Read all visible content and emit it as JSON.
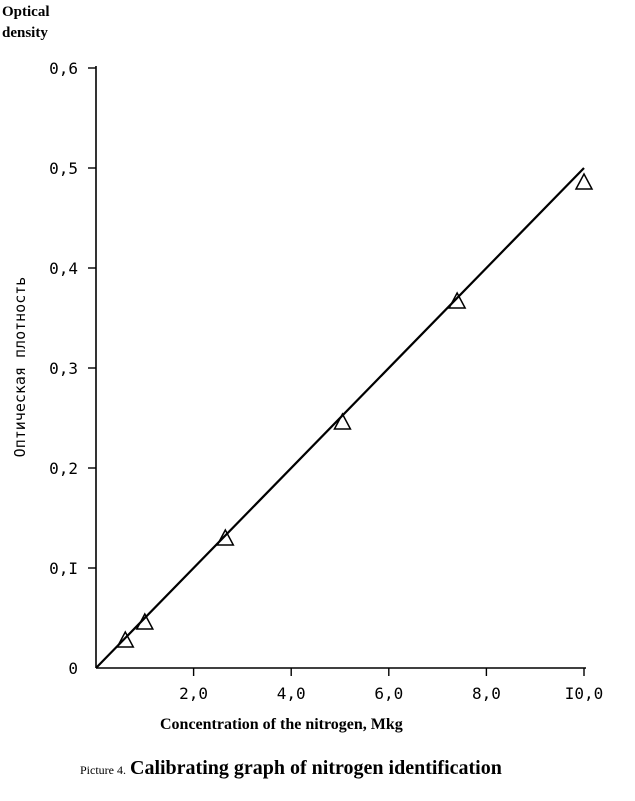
{
  "chart_data": {
    "type": "scatter",
    "title": "Calibrating graph of nitrogen identification",
    "caption_prefix": "Picture 4.",
    "xlabel": "Concentration of the nitrogen, Mkg",
    "ylabel": "Оптическая плотность",
    "ylabel_en": [
      "Optical",
      "density"
    ],
    "xlim": [
      0,
      10
    ],
    "ylim": [
      0,
      0.6
    ],
    "x_ticks": [
      0,
      2,
      4,
      6,
      8,
      10
    ],
    "x_tick_labels": [
      "2,0",
      "4,0",
      "6,0",
      "8,0",
      "I0,0"
    ],
    "y_ticks": [
      0,
      0.1,
      0.2,
      0.3,
      0.4,
      0.5,
      0.6
    ],
    "y_tick_labels": [
      "0",
      "0,I",
      "0,2",
      "0,3",
      "0,4",
      "0,5",
      "0,6"
    ],
    "grid": false,
    "marker": "triangle",
    "series": [
      {
        "x": [
          0.6,
          1.0,
          2.65,
          5.05,
          7.4,
          10.0
        ],
        "y": [
          0.028,
          0.046,
          0.13,
          0.246,
          0.367,
          0.486
        ]
      }
    ],
    "fit_line": {
      "x": [
        0,
        10.0
      ],
      "y": [
        0,
        0.5
      ]
    }
  }
}
